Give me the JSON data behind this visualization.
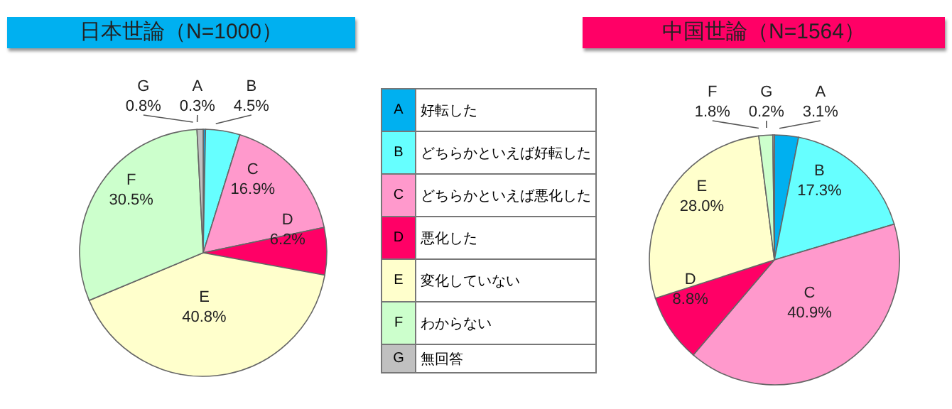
{
  "chart_data": [
    {
      "type": "pie",
      "title": "日本世論（N=1000）",
      "categories": [
        "A",
        "B",
        "C",
        "D",
        "E",
        "F",
        "G"
      ],
      "values": [
        0.3,
        4.5,
        16.9,
        6.2,
        40.8,
        30.5,
        0.8
      ],
      "colors": [
        "#00b0f0",
        "#66ffff",
        "#ff99cc",
        "#ff0066",
        "#ffffcc",
        "#ccffcc",
        "#c0c0c0"
      ],
      "value_labels": [
        "0.3%",
        "4.5%",
        "16.9%",
        "6.2%",
        "40.8%",
        "30.5%",
        "0.8%"
      ]
    },
    {
      "type": "other",
      "categories": [
        "A",
        "B",
        "C",
        "D",
        "E",
        "F",
        "G"
      ],
      "annotations": [
        "好転した",
        "どちらかといえば好転した",
        "どちらかといえば悪化した",
        "悪化した",
        "変化していない",
        "わからない",
        "無回答"
      ],
      "colors": [
        "#00b0f0",
        "#66ffff",
        "#ff99cc",
        "#ff0066",
        "#ffffcc",
        "#ccffcc",
        "#c0c0c0"
      ]
    },
    {
      "type": "pie",
      "title": "中国世論（N=1564）",
      "categories": [
        "A",
        "B",
        "C",
        "D",
        "E",
        "F",
        "G"
      ],
      "values": [
        3.1,
        17.3,
        40.9,
        8.8,
        28.0,
        1.8,
        0.2
      ],
      "colors": [
        "#00b0f0",
        "#66ffff",
        "#ff99cc",
        "#ff0066",
        "#ffffcc",
        "#ccffcc",
        "#c0c0c0"
      ],
      "value_labels": [
        "3.1%",
        "17.3%",
        "40.9%",
        "8.8%",
        "28.0%",
        "1.8%",
        "0.2%"
      ]
    }
  ]
}
